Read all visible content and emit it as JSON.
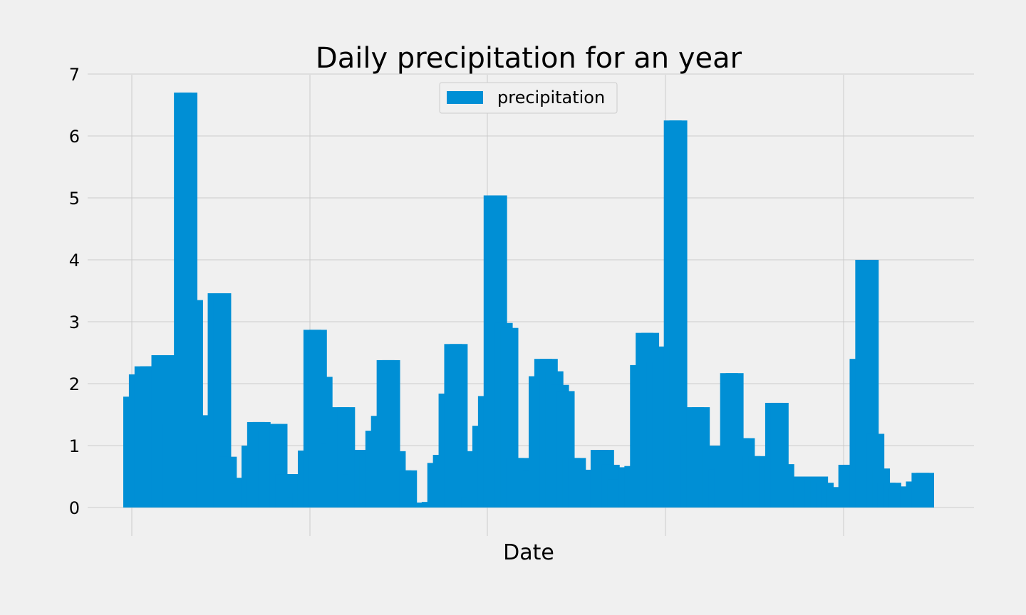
{
  "chart_data": {
    "type": "bar",
    "title": "Daily precipitation for an year",
    "xlabel": "Date",
    "ylabel": "",
    "ylim": [
      0,
      7
    ],
    "yticks": [
      0,
      1,
      2,
      3,
      4,
      5,
      6,
      7
    ],
    "grid": true,
    "legend_placement": "top-center",
    "series": [
      {
        "name": "precipitation",
        "color": "#008fd5",
        "values": [
          1.79,
          2.15,
          2.28,
          2.28,
          2.28,
          2.46,
          2.46,
          1.35,
          1.35,
          6.7,
          6.7,
          3.35,
          1.02,
          1.02,
          1.49,
          3.46,
          3.46,
          0.82,
          0.36,
          0.39,
          0.48,
          1.0,
          1.38,
          1.38,
          1.25,
          1.35,
          1.35,
          0.54,
          0.54,
          0.17,
          0.24,
          0.92,
          2.87,
          2.87,
          2.11,
          1.03,
          1.28,
          1.62,
          1.62,
          0.53,
          0.93,
          0.93,
          0.87,
          1.24,
          1.48,
          2.38,
          2.38,
          0.91,
          0.6,
          0.6,
          0.05,
          0.02,
          0.08,
          0.09,
          0.72,
          0.85,
          1.84,
          2.64,
          2.64,
          0.55,
          0.17,
          0.91,
          1.32,
          1.8,
          5.04,
          5.04,
          2.98,
          2.9,
          0.8,
          0.8,
          0.32,
          0.59,
          2.12,
          2.4,
          2.4,
          2.2,
          1.98,
          1.88,
          0.8,
          0.8,
          0.35,
          0.35,
          0.61,
          0.93,
          0.93,
          0.69,
          0.45,
          0.45,
          0.65,
          0.67,
          2.3,
          2.82,
          2.82,
          2.36,
          2.36,
          2.6,
          6.25,
          6.25,
          1.31,
          1.17,
          1.62,
          1.62,
          1.0,
          1.0,
          0.61,
          0.63,
          2.17,
          2.17,
          1.12,
          1.12,
          0.83,
          0.83,
          0.8,
          0.82,
          1.69,
          1.69,
          0.7,
          0.5,
          0.5,
          0.5,
          0.5,
          0.5,
          0.5,
          0.4,
          0.31,
          0.31,
          0.33,
          0.69,
          0.69,
          2.4,
          4.0,
          4.0,
          1.19,
          0.63,
          0.4,
          0.4,
          0.31,
          0.34,
          0.34,
          0.42,
          0.56,
          0.56,
          0.49,
          0.46
        ]
      }
    ]
  }
}
